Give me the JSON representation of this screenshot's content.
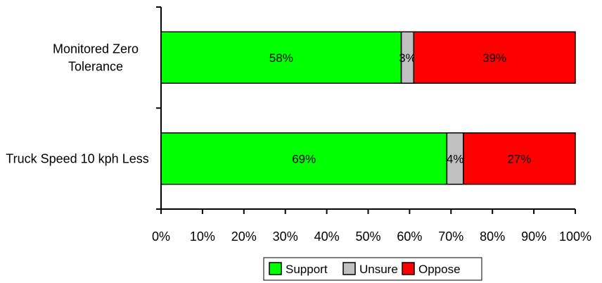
{
  "chart_data": {
    "type": "bar",
    "orientation": "horizontal",
    "stacked": "percent",
    "categories": [
      [
        "Monitored Zero",
        "Tolerance"
      ],
      [
        "Truck Speed 10 kph Less"
      ]
    ],
    "series": [
      {
        "name": "Support",
        "color": "#00ff00",
        "values": [
          58,
          69
        ],
        "labels": [
          "58%",
          "69%"
        ]
      },
      {
        "name": "Unsure",
        "color": "#c0c0c0",
        "values": [
          3,
          4
        ],
        "labels": [
          "3%",
          "4%"
        ]
      },
      {
        "name": "Oppose",
        "color": "#ff0000",
        "values": [
          39,
          27
        ],
        "labels": [
          "39%",
          "27%"
        ]
      }
    ],
    "xlim": [
      0,
      100
    ],
    "xticks": [
      "0%",
      "10%",
      "20%",
      "30%",
      "40%",
      "50%",
      "60%",
      "70%",
      "80%",
      "90%",
      "100%"
    ],
    "legend_position": "bottom",
    "grid": false
  }
}
